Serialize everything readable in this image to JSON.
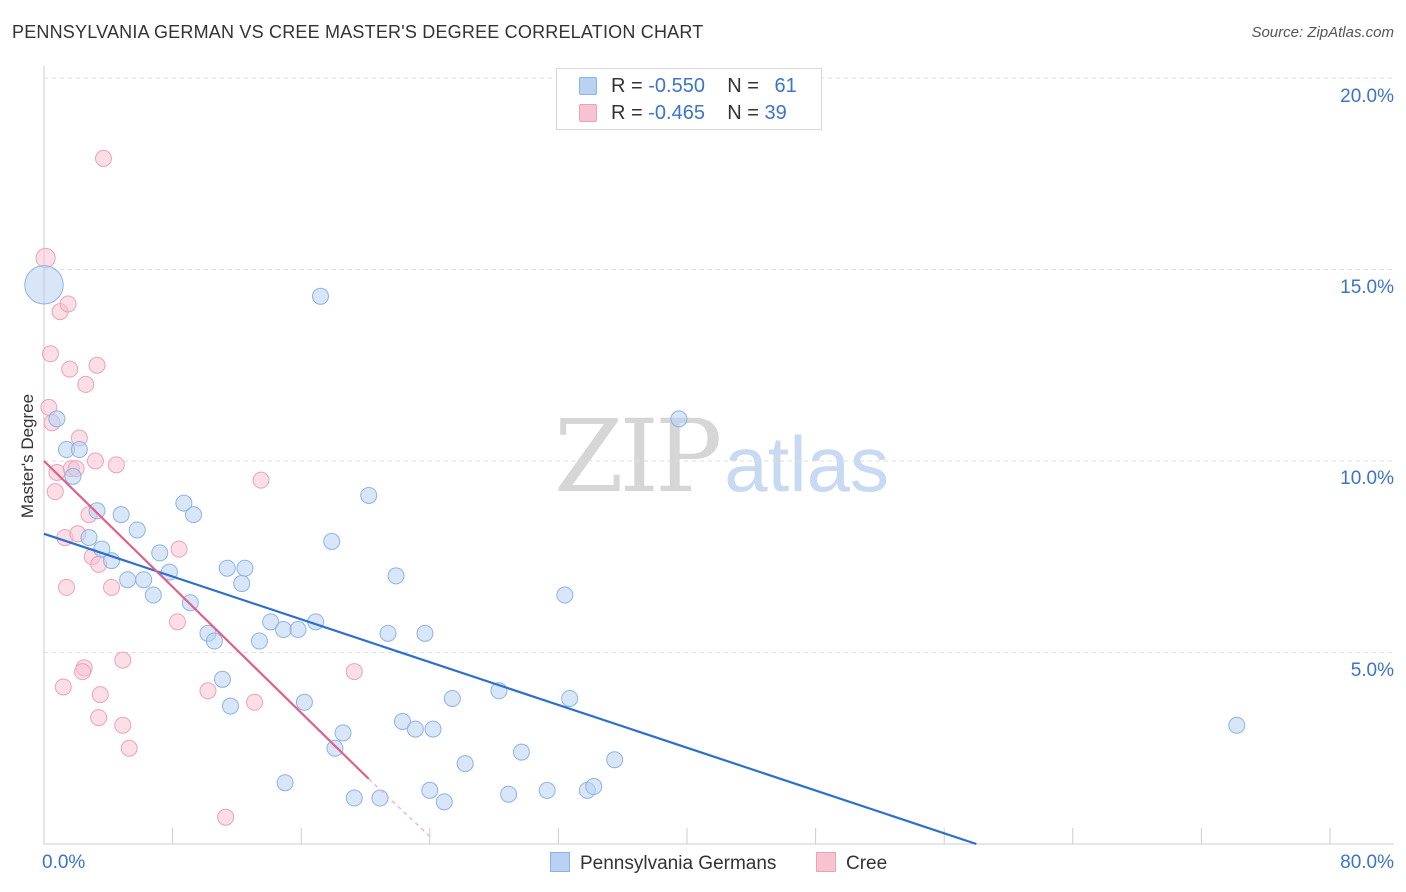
{
  "title": "PENNSYLVANIA GERMAN VS CREE MASTER'S DEGREE CORRELATION CHART",
  "source": "Source: ZipAtlas.com",
  "watermark": {
    "zip": "ZIP",
    "atlas": "atlas"
  },
  "legend_top": {
    "row1": {
      "r_label": "R = ",
      "r_value": "-0.550",
      "n_label": "N = ",
      "n_value": "61"
    },
    "row2": {
      "r_label": "R = ",
      "r_value": "-0.465",
      "n_label": "N = ",
      "n_value": "39"
    }
  },
  "legend_bottom": {
    "series1": "Pennsylvania Germans",
    "series2": "Cree"
  },
  "colors": {
    "blue_fill": "#b9d1f3",
    "blue_stroke": "#8cb3e8",
    "blue_line": "#2d6fd0",
    "pink_fill": "#f7c3d2",
    "pink_stroke": "#eea2b8",
    "pink_line": "#e0608a",
    "grid": "#dddddd",
    "axis_text": "#3b74c9"
  },
  "chart_data": {
    "type": "scatter",
    "title": "PENNSYLVANIA GERMAN VS CREE MASTER'S DEGREE CORRELATION CHART",
    "xlabel": "",
    "ylabel": "Master's Degree",
    "xlim": [
      0,
      80
    ],
    "ylim": [
      0,
      20
    ],
    "x_tick_labels": [
      "0.0%",
      "80.0%"
    ],
    "y_ticks": [
      5,
      10,
      15,
      20
    ],
    "y_tick_labels": [
      "5.0%",
      "10.0%",
      "15.0%",
      "20.0%"
    ],
    "series": [
      {
        "name": "Pennsylvania Germans",
        "R": -0.55,
        "N": 61,
        "trend": {
          "x0": 0,
          "y0": 8.1,
          "x1": 58,
          "y1": 0.0
        },
        "points": [
          [
            0.0,
            14.6,
            12
          ],
          [
            0.8,
            11.1,
            5
          ],
          [
            1.4,
            10.3,
            5
          ],
          [
            2.2,
            10.3,
            5
          ],
          [
            1.8,
            9.6,
            5
          ],
          [
            3.3,
            8.7,
            5
          ],
          [
            4.8,
            8.6,
            5
          ],
          [
            2.8,
            8.0,
            5
          ],
          [
            5.8,
            8.2,
            5
          ],
          [
            3.6,
            7.7,
            5
          ],
          [
            4.2,
            7.4,
            5
          ],
          [
            7.2,
            7.6,
            5
          ],
          [
            6.2,
            6.9,
            5
          ],
          [
            5.2,
            6.9,
            5
          ],
          [
            7.8,
            7.1,
            5
          ],
          [
            6.8,
            6.5,
            5
          ],
          [
            9.3,
            8.6,
            5
          ],
          [
            8.7,
            8.9,
            5
          ],
          [
            9.1,
            6.3,
            5
          ],
          [
            11.4,
            7.2,
            5
          ],
          [
            12.5,
            7.2,
            5
          ],
          [
            12.3,
            6.8,
            5
          ],
          [
            10.2,
            5.5,
            5
          ],
          [
            10.6,
            5.3,
            5
          ],
          [
            11.1,
            4.3,
            5
          ],
          [
            11.6,
            3.6,
            5
          ],
          [
            13.4,
            5.3,
            5
          ],
          [
            14.1,
            5.8,
            5
          ],
          [
            14.9,
            5.6,
            5
          ],
          [
            15.8,
            5.6,
            5
          ],
          [
            16.9,
            5.8,
            5
          ],
          [
            17.2,
            14.3,
            5
          ],
          [
            17.9,
            7.9,
            5
          ],
          [
            20.2,
            9.1,
            5
          ],
          [
            21.4,
            5.5,
            5
          ],
          [
            21.9,
            7.0,
            5
          ],
          [
            23.7,
            5.5,
            5
          ],
          [
            16.2,
            3.7,
            5
          ],
          [
            18.6,
            2.9,
            5
          ],
          [
            18.1,
            2.5,
            5
          ],
          [
            22.3,
            3.2,
            5
          ],
          [
            23.1,
            3.0,
            5
          ],
          [
            24.2,
            3.0,
            5
          ],
          [
            25.4,
            3.8,
            5
          ],
          [
            28.3,
            4.0,
            5
          ],
          [
            29.7,
            2.4,
            5
          ],
          [
            32.4,
            6.5,
            5
          ],
          [
            32.7,
            3.8,
            5
          ],
          [
            35.5,
            2.2,
            5
          ],
          [
            15.0,
            1.6,
            5
          ],
          [
            19.3,
            1.2,
            5
          ],
          [
            20.9,
            1.2,
            5
          ],
          [
            24.0,
            1.4,
            5
          ],
          [
            24.9,
            1.1,
            5
          ],
          [
            26.2,
            2.1,
            5
          ],
          [
            28.9,
            1.3,
            5
          ],
          [
            31.3,
            1.4,
            5
          ],
          [
            33.8,
            1.4,
            5
          ],
          [
            34.2,
            1.5,
            5
          ],
          [
            39.5,
            11.1,
            5
          ],
          [
            74.2,
            3.1,
            5
          ]
        ]
      },
      {
        "name": "Cree",
        "R": -0.465,
        "N": 39,
        "trend": {
          "x0": 0,
          "y0": 10.0,
          "x1": 20.2,
          "y1": 1.7,
          "dash_x1": 24.0,
          "dash_y1": 0.2
        },
        "points": [
          [
            0.1,
            15.3,
            6
          ],
          [
            3.7,
            17.9,
            5
          ],
          [
            1.0,
            13.9,
            5
          ],
          [
            1.5,
            14.1,
            5
          ],
          [
            0.4,
            12.8,
            5
          ],
          [
            1.6,
            12.4,
            5
          ],
          [
            3.3,
            12.5,
            5
          ],
          [
            2.6,
            12.0,
            5
          ],
          [
            0.3,
            11.4,
            5
          ],
          [
            0.5,
            11.0,
            5
          ],
          [
            2.2,
            10.6,
            5
          ],
          [
            0.8,
            9.7,
            5
          ],
          [
            1.7,
            9.8,
            5
          ],
          [
            2.0,
            9.8,
            5
          ],
          [
            3.2,
            10.0,
            5
          ],
          [
            4.5,
            9.9,
            5
          ],
          [
            0.7,
            9.2,
            5
          ],
          [
            2.8,
            8.6,
            5
          ],
          [
            1.3,
            8.0,
            5
          ],
          [
            2.1,
            8.1,
            5
          ],
          [
            3.0,
            7.5,
            5
          ],
          [
            3.4,
            7.3,
            5
          ],
          [
            8.4,
            7.7,
            5
          ],
          [
            1.4,
            6.7,
            5
          ],
          [
            4.2,
            6.7,
            5
          ],
          [
            13.5,
            9.5,
            5
          ],
          [
            8.3,
            5.8,
            5
          ],
          [
            2.5,
            4.6,
            5
          ],
          [
            2.4,
            4.5,
            5
          ],
          [
            4.9,
            4.8,
            5
          ],
          [
            1.2,
            4.1,
            5
          ],
          [
            3.5,
            3.9,
            5
          ],
          [
            10.2,
            4.0,
            5
          ],
          [
            13.1,
            3.7,
            5
          ],
          [
            19.3,
            4.5,
            5
          ],
          [
            3.4,
            3.3,
            5
          ],
          [
            4.9,
            3.1,
            5
          ],
          [
            5.3,
            2.5,
            5
          ],
          [
            11.3,
            0.7,
            5
          ]
        ]
      }
    ]
  }
}
